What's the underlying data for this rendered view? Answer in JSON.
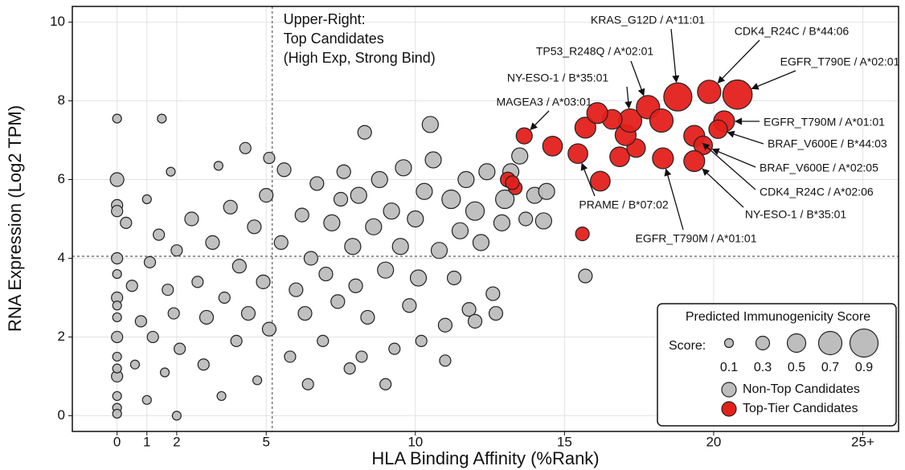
{
  "chart_data": {
    "type": "scatter",
    "xlabel": "HLA Binding Affinity (%Rank)",
    "ylabel": "RNA Expression (Log2 TPM)",
    "annotation": [
      "Upper-Right:",
      "Top Candidates",
      "(High Exp, Strong Bind)"
    ],
    "xlim": [
      -1.5,
      26.2
    ],
    "ylim": [
      -0.4,
      10.4
    ],
    "xticks": [
      0,
      1,
      2,
      5,
      10,
      15,
      20,
      {
        "value": 25,
        "label": "25+"
      }
    ],
    "yticks": [
      0,
      2,
      4,
      6,
      8,
      10
    ],
    "grid": true,
    "reference_lines": {
      "x": 5.2,
      "y": 4.05
    },
    "size_legend_title": "Predicted Immunogenicity Score",
    "size_legend_label": "Score:",
    "size_legend": [
      0.1,
      0.3,
      0.5,
      0.7,
      0.9
    ],
    "legend": "lower right",
    "series": [
      {
        "name": "Non-Top Candidates",
        "color": "#bdbdbd",
        "x": [
          0,
          0,
          0,
          0,
          0,
          0,
          0,
          0,
          0,
          0,
          0,
          0,
          0,
          0,
          0,
          0,
          0.3,
          0.5,
          0.6,
          0.8,
          1,
          1,
          1.1,
          1.2,
          1.4,
          1.5,
          1.6,
          1.7,
          1.8,
          1.9,
          2,
          2,
          2.1,
          2.5,
          2.7,
          2.9,
          3,
          3.2,
          3.4,
          3.5,
          3.6,
          3.8,
          4,
          4.1,
          4.3,
          4.4,
          4.6,
          4.7,
          4.9,
          5,
          5.1,
          5.1,
          5.5,
          5.6,
          5.8,
          6,
          6.2,
          6.3,
          6.5,
          6.7,
          6.9,
          7,
          7.2,
          7.4,
          7.5,
          7.6,
          7.8,
          7.9,
          8,
          8.1,
          8.3,
          8.4,
          8.6,
          8.8,
          9,
          9.2,
          9.3,
          9.5,
          9.6,
          9.8,
          10,
          10.1,
          10.3,
          10.5,
          10.6,
          10.8,
          11,
          11.2,
          11.3,
          11.5,
          11.7,
          11.8,
          12,
          12.2,
          12.4,
          12.6,
          12.7,
          12.9,
          13,
          13.2,
          13.5,
          13.7,
          14,
          14.3,
          14.4,
          15.7,
          12,
          11,
          10.2,
          9,
          8.2,
          6.4
        ],
        "values": [
          7.55,
          6.0,
          5.35,
          5.2,
          4.0,
          3.6,
          3.0,
          2.5,
          2.0,
          1.5,
          1.0,
          0.5,
          0.2,
          0.05,
          2.8,
          1.2,
          4.9,
          3.3,
          1.3,
          2.4,
          0.4,
          5.5,
          3.9,
          2.0,
          4.6,
          7.55,
          1.1,
          3.2,
          6.2,
          2.6,
          0.0,
          4.2,
          1.7,
          5.0,
          3.4,
          1.3,
          2.5,
          4.4,
          6.35,
          0.5,
          3.0,
          5.3,
          1.9,
          3.8,
          6.8,
          2.6,
          4.8,
          0.9,
          3.4,
          5.6,
          6.55,
          2.2,
          4.4,
          6.25,
          1.5,
          3.2,
          5.1,
          2.6,
          4.0,
          5.9,
          1.9,
          3.6,
          4.9,
          2.9,
          5.5,
          6.2,
          1.2,
          4.3,
          3.3,
          5.6,
          7.2,
          2.5,
          4.8,
          6.0,
          3.7,
          5.2,
          1.7,
          4.3,
          6.3,
          2.8,
          5.0,
          3.5,
          5.7,
          7.4,
          6.5,
          4.2,
          2.3,
          5.5,
          3.5,
          4.7,
          6.0,
          2.7,
          5.2,
          4.4,
          6.2,
          3.1,
          2.6,
          4.9,
          5.5,
          6.2,
          6.6,
          5.0,
          5.6,
          4.95,
          5.7,
          3.55,
          2.4,
          1.4,
          1.9,
          0.8,
          1.5,
          0.8
        ],
        "sizes": [
          0.1,
          0.3,
          0.2,
          0.2,
          0.2,
          0.1,
          0.2,
          0.1,
          0.2,
          0.1,
          0.2,
          0.1,
          0.1,
          0.1,
          0.1,
          0.1,
          0.2,
          0.2,
          0.1,
          0.2,
          0.1,
          0.1,
          0.2,
          0.2,
          0.2,
          0.1,
          0.1,
          0.2,
          0.1,
          0.2,
          0.1,
          0.2,
          0.2,
          0.3,
          0.2,
          0.2,
          0.3,
          0.3,
          0.1,
          0.1,
          0.2,
          0.3,
          0.2,
          0.3,
          0.2,
          0.3,
          0.3,
          0.1,
          0.3,
          0.3,
          0.2,
          0.3,
          0.3,
          0.3,
          0.2,
          0.3,
          0.3,
          0.3,
          0.3,
          0.3,
          0.2,
          0.3,
          0.4,
          0.3,
          0.3,
          0.3,
          0.2,
          0.4,
          0.3,
          0.4,
          0.3,
          0.3,
          0.4,
          0.4,
          0.4,
          0.4,
          0.2,
          0.4,
          0.4,
          0.3,
          0.4,
          0.4,
          0.4,
          0.4,
          0.4,
          0.4,
          0.3,
          0.5,
          0.3,
          0.4,
          0.4,
          0.3,
          0.5,
          0.4,
          0.4,
          0.3,
          0.3,
          0.4,
          0.5,
          0.4,
          0.4,
          0.3,
          0.4,
          0.4,
          0.4,
          0.3,
          0.3,
          0.2,
          0.2,
          0.2,
          0.2,
          0.2
        ]
      },
      {
        "name": "Top-Tier Candidates",
        "color": "#e3201b",
        "x": [
          13.65,
          14.6,
          15.7,
          15.45,
          13.1,
          13.35,
          13.25,
          15.6,
          16.2,
          16.85,
          17.4,
          17.05,
          17.2,
          16.6,
          17.8,
          18.25,
          18.8,
          19.85,
          20.8,
          20.35,
          20.15,
          19.35,
          19.65,
          18.3,
          19.35,
          16.1
        ],
        "values": [
          7.11,
          6.85,
          7.32,
          6.66,
          6.0,
          5.79,
          5.92,
          4.62,
          5.96,
          6.58,
          6.8,
          7.13,
          7.5,
          7.53,
          7.84,
          7.5,
          8.1,
          8.23,
          8.16,
          7.48,
          7.28,
          7.11,
          6.87,
          6.54,
          6.47,
          7.69
        ],
        "sizes": [
          0.4,
          0.55,
          0.6,
          0.55,
          0.35,
          0.3,
          0.3,
          0.3,
          0.55,
          0.55,
          0.5,
          0.6,
          0.7,
          0.55,
          0.7,
          0.7,
          0.9,
          0.7,
          0.95,
          0.6,
          0.5,
          0.6,
          0.5,
          0.6,
          0.6,
          0.6
        ],
        "point_labels": [
          "MAGEA3 / A*03:01",
          null,
          null,
          "PRAME / B*07:02",
          null,
          null,
          null,
          null,
          null,
          null,
          null,
          null,
          "NY-ESO-1 / B*35:01",
          null,
          "TP53_R248Q / A*02:01",
          null,
          "KRAS_G12D / A*11:01",
          "CDK4_R24C / B*44:06",
          "EGFR_T790E / A*02:01",
          "EGFR_T790M / A*01:01",
          "BRAF_V600E / B*44:03",
          "CDK4_R24C / A*02:06",
          "BRAF_V600E / A*02:05",
          "EGFR_T790M / A*01:01",
          "NY-ESO-1 / B*35:01",
          null
        ]
      }
    ]
  }
}
